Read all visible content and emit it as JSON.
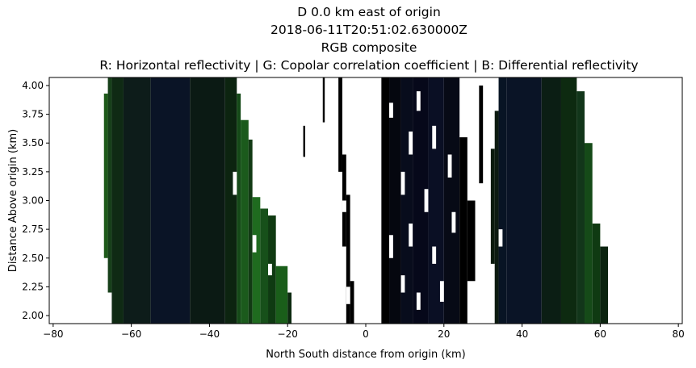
{
  "chart_data": {
    "type": "heatmap",
    "title_lines": [
      "D 0.0 km east of origin",
      "2018-06-11T20:51:02.630000Z",
      "RGB composite",
      "R: Horizontal reflectivity | G: Copolar correlation coefficient | B: Differential reflectivity"
    ],
    "xlabel": "North South distance from origin (km)",
    "ylabel": "Distance Above origin (km)",
    "xlim": [
      -81,
      81
    ],
    "ylim": [
      1.93,
      4.07
    ],
    "x_ticks": [
      -80,
      -60,
      -40,
      -20,
      0,
      20,
      40,
      60,
      80
    ],
    "x_tick_labels": [
      "−80",
      "−60",
      "−40",
      "−20",
      "0",
      "20",
      "40",
      "60",
      "80"
    ],
    "y_ticks": [
      2.0,
      2.25,
      2.5,
      2.75,
      3.0,
      3.25,
      3.5,
      3.75,
      4.0
    ],
    "y_tick_labels": [
      "2.00",
      "2.25",
      "2.50",
      "2.75",
      "3.00",
      "3.25",
      "3.50",
      "3.75",
      "4.00"
    ],
    "grid": false,
    "colors": {
      "dark_green": "#0a2a0a",
      "green": "#1f6b1f",
      "navy": "#0b1228",
      "black": "#000000",
      "background": "#ffffff"
    },
    "columns": [
      {
        "x0": -67,
        "x1": -66,
        "top": 3.93,
        "bottom": 2.5,
        "color": "#1e5a1a"
      },
      {
        "x0": -66,
        "x1": -65,
        "top": 4.07,
        "bottom": 2.2,
        "color": "#17401a"
      },
      {
        "x0": -65,
        "x1": -62,
        "top": 4.07,
        "bottom": 1.93,
        "color": "#0f2a14"
      },
      {
        "x0": -62,
        "x1": -55,
        "top": 4.07,
        "bottom": 1.93,
        "color": "#0d1c1a"
      },
      {
        "x0": -55,
        "x1": -45,
        "top": 4.07,
        "bottom": 1.93,
        "color": "#0a1426"
      },
      {
        "x0": -45,
        "x1": -36,
        "top": 4.07,
        "bottom": 1.93,
        "color": "#0b1a14"
      },
      {
        "x0": -36,
        "x1": -33,
        "top": 4.07,
        "bottom": 1.93,
        "color": "#0c2410"
      },
      {
        "x0": -33,
        "x1": -32,
        "top": 3.93,
        "bottom": 1.93,
        "color": "#154a18"
      },
      {
        "x0": -32,
        "x1": -30,
        "top": 3.7,
        "bottom": 1.93,
        "color": "#1b5a1c"
      },
      {
        "x0": -30,
        "x1": -29,
        "top": 3.53,
        "bottom": 1.93,
        "color": "#123a14"
      },
      {
        "x0": -29,
        "x1": -27,
        "top": 3.03,
        "bottom": 1.93,
        "color": "#1f6b1f"
      },
      {
        "x0": -27,
        "x1": -25,
        "top": 2.93,
        "bottom": 1.93,
        "color": "#17501a"
      },
      {
        "x0": -25,
        "x1": -23,
        "top": 2.87,
        "bottom": 1.93,
        "color": "#0f3a12"
      },
      {
        "x0": -23,
        "x1": -20,
        "top": 2.43,
        "bottom": 1.93,
        "color": "#1a5e1a"
      },
      {
        "x0": -20,
        "x1": -19,
        "top": 2.2,
        "bottom": 1.93,
        "color": "#0d2a10"
      },
      {
        "x0": -16,
        "x1": -15.5,
        "top": 3.65,
        "bottom": 3.38,
        "color": "#000000"
      },
      {
        "x0": -11,
        "x1": -10.5,
        "top": 4.07,
        "bottom": 3.68,
        "color": "#000000"
      },
      {
        "x0": -7,
        "x1": -6,
        "top": 4.07,
        "bottom": 3.25,
        "color": "#000000"
      },
      {
        "x0": -6,
        "x1": -5,
        "top": 3.4,
        "bottom": 2.6,
        "color": "#000000"
      },
      {
        "x0": -5,
        "x1": -4,
        "top": 3.05,
        "bottom": 1.93,
        "color": "#000000"
      },
      {
        "x0": -4,
        "x1": -3,
        "top": 2.3,
        "bottom": 1.93,
        "color": "#000000"
      },
      {
        "x0": 4,
        "x1": 6,
        "top": 4.07,
        "bottom": 1.93,
        "color": "#000000"
      },
      {
        "x0": 6,
        "x1": 9,
        "top": 4.07,
        "bottom": 1.93,
        "color": "#05070f"
      },
      {
        "x0": 9,
        "x1": 12,
        "top": 4.07,
        "bottom": 1.93,
        "color": "#080c1c"
      },
      {
        "x0": 12,
        "x1": 16,
        "top": 4.07,
        "bottom": 1.93,
        "color": "#06081a"
      },
      {
        "x0": 16,
        "x1": 20,
        "top": 4.07,
        "bottom": 1.93,
        "color": "#0a0f24"
      },
      {
        "x0": 20,
        "x1": 24,
        "top": 4.07,
        "bottom": 1.93,
        "color": "#070a16"
      },
      {
        "x0": 24,
        "x1": 26,
        "top": 3.55,
        "bottom": 1.93,
        "color": "#000000"
      },
      {
        "x0": 26,
        "x1": 28,
        "top": 3.0,
        "bottom": 2.3,
        "color": "#000000"
      },
      {
        "x0": 29,
        "x1": 30,
        "top": 4.0,
        "bottom": 3.15,
        "color": "#000000"
      },
      {
        "x0": 32,
        "x1": 33,
        "top": 3.45,
        "bottom": 2.45,
        "color": "#0a1a0c"
      },
      {
        "x0": 33,
        "x1": 34,
        "top": 3.78,
        "bottom": 1.93,
        "color": "#0c1a10"
      },
      {
        "x0": 34,
        "x1": 36,
        "top": 4.07,
        "bottom": 1.93,
        "color": "#081424"
      },
      {
        "x0": 36,
        "x1": 45,
        "top": 4.07,
        "bottom": 1.93,
        "color": "#0a1426"
      },
      {
        "x0": 45,
        "x1": 50,
        "top": 4.07,
        "bottom": 1.93,
        "color": "#0b1e14"
      },
      {
        "x0": 50,
        "x1": 54,
        "top": 4.07,
        "bottom": 1.93,
        "color": "#0d2a10"
      },
      {
        "x0": 54,
        "x1": 56,
        "top": 3.95,
        "bottom": 1.93,
        "color": "#12361a"
      },
      {
        "x0": 56,
        "x1": 58,
        "top": 3.5,
        "bottom": 1.93,
        "color": "#154a18"
      },
      {
        "x0": 58,
        "x1": 60,
        "top": 2.8,
        "bottom": 1.93,
        "color": "#0f3a12"
      },
      {
        "x0": 60,
        "x1": 62,
        "top": 2.6,
        "bottom": 1.93,
        "color": "#0c2410"
      }
    ],
    "gaps": [
      {
        "x0": -34,
        "x1": -33,
        "y0": 3.05,
        "y1": 3.25
      },
      {
        "x0": -29,
        "x1": -28,
        "y0": 2.55,
        "y1": 2.7
      },
      {
        "x0": -25,
        "x1": -24,
        "y0": 2.35,
        "y1": 2.45
      },
      {
        "x0": -6,
        "x1": -5,
        "y0": 2.9,
        "y1": 3.0
      },
      {
        "x0": -5,
        "x1": -4,
        "y0": 2.1,
        "y1": 2.25
      },
      {
        "x0": 6,
        "x1": 7,
        "y0": 3.72,
        "y1": 3.85
      },
      {
        "x0": 6,
        "x1": 7,
        "y0": 2.5,
        "y1": 2.7
      },
      {
        "x0": 9,
        "x1": 10,
        "y0": 3.05,
        "y1": 3.25
      },
      {
        "x0": 9,
        "x1": 10,
        "y0": 2.2,
        "y1": 2.35
      },
      {
        "x0": 11,
        "x1": 12,
        "y0": 3.4,
        "y1": 3.6
      },
      {
        "x0": 11,
        "x1": 12,
        "y0": 2.6,
        "y1": 2.8
      },
      {
        "x0": 13,
        "x1": 14,
        "y0": 3.78,
        "y1": 3.95
      },
      {
        "x0": 13,
        "x1": 14,
        "y0": 2.05,
        "y1": 2.2
      },
      {
        "x0": 15,
        "x1": 16,
        "y0": 2.9,
        "y1": 3.1
      },
      {
        "x0": 17,
        "x1": 18,
        "y0": 3.45,
        "y1": 3.65
      },
      {
        "x0": 17,
        "x1": 18,
        "y0": 2.45,
        "y1": 2.6
      },
      {
        "x0": 19,
        "x1": 20,
        "y0": 2.12,
        "y1": 2.3
      },
      {
        "x0": 21,
        "x1": 22,
        "y0": 3.2,
        "y1": 3.4
      },
      {
        "x0": 22,
        "x1": 23,
        "y0": 2.72,
        "y1": 2.9
      },
      {
        "x0": 34,
        "x1": 35,
        "y0": 2.6,
        "y1": 2.75
      }
    ]
  }
}
